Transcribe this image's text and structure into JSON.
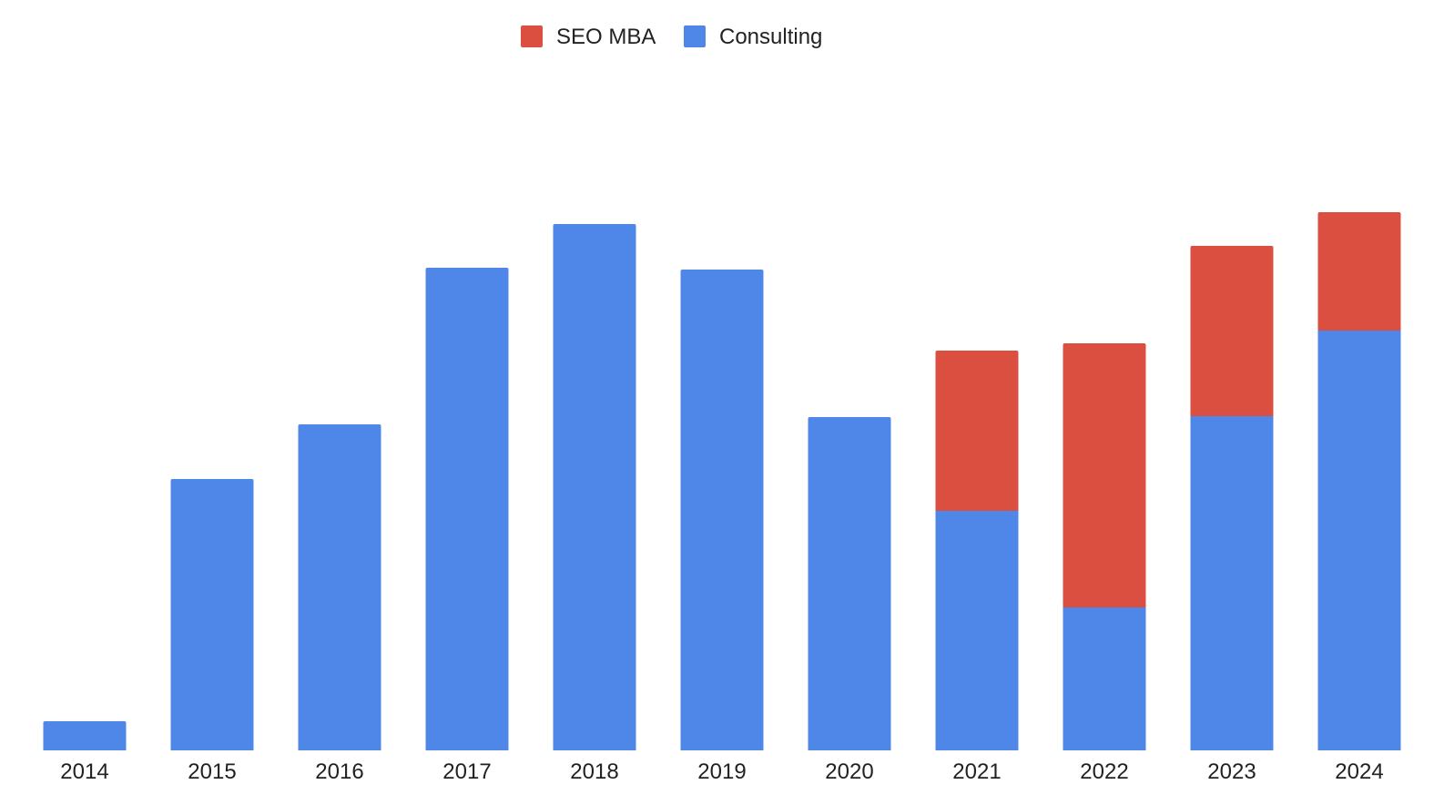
{
  "colors": {
    "seo_mba": "#db4f40",
    "consulting": "#4f87e8"
  },
  "chart_data": {
    "type": "bar",
    "stacked": true,
    "title": "",
    "xlabel": "",
    "ylabel": "",
    "ylim": [
      0,
      600
    ],
    "grid": false,
    "legend_position": "top-center",
    "categories": [
      "2014",
      "2015",
      "2016",
      "2017",
      "2018",
      "2019",
      "2020",
      "2021",
      "2022",
      "2023",
      "2024"
    ],
    "series": [
      {
        "name": "Consulting",
        "color": "#4f87e8",
        "values": [
          32,
          298,
          358,
          530,
          578,
          528,
          366,
          263,
          157,
          367,
          461
        ]
      },
      {
        "name": "SEO MBA",
        "color": "#db4f40",
        "values": [
          0,
          0,
          0,
          0,
          0,
          0,
          0,
          176,
          290,
          187,
          130
        ]
      }
    ],
    "legend": [
      "SEO MBA",
      "Consulting"
    ]
  }
}
